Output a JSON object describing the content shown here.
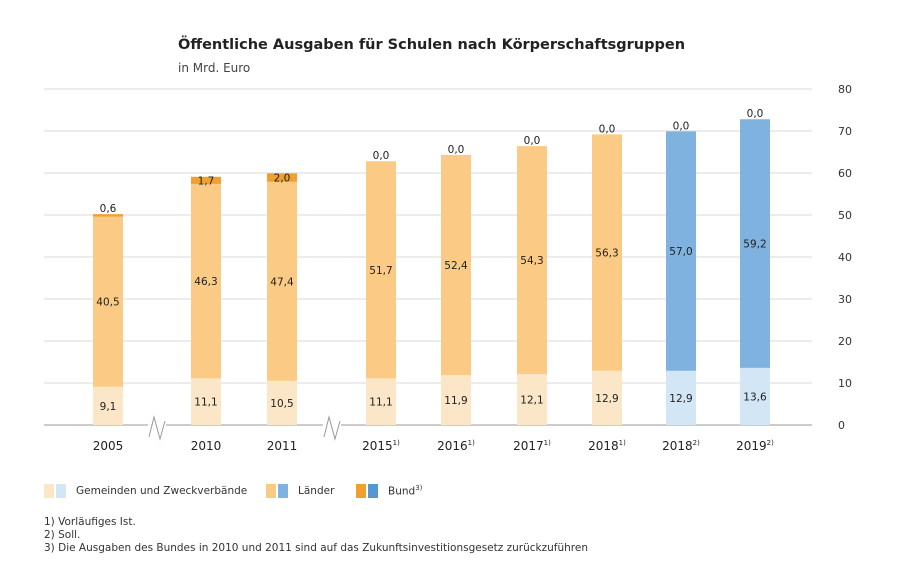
{
  "chart_data": {
    "type": "bar",
    "stacked": true,
    "title": "Öffentliche Ausgaben für Schulen nach Körperschaftsgruppen",
    "subtitle": "in Mrd. Euro",
    "categories": [
      "2005",
      "2010",
      "2011",
      "2015",
      "2016",
      "2017",
      "2018",
      "2018",
      "2019"
    ],
    "category_notes": [
      "",
      "",
      "",
      "1)",
      "1)",
      "1)",
      "1)",
      "2)",
      "2)"
    ],
    "palette": [
      "orange",
      "orange",
      "orange",
      "orange",
      "orange",
      "orange",
      "orange",
      "blue",
      "blue"
    ],
    "series": [
      {
        "name": "Gemeinden und Zweckverbände",
        "values": [
          9.1,
          11.1,
          10.5,
          11.1,
          11.9,
          12.1,
          12.9,
          12.9,
          13.6
        ],
        "labels": [
          "9,1",
          "11,1",
          "10,5",
          "11,1",
          "11,9",
          "12,1",
          "12,9",
          "12,9",
          "13,6"
        ]
      },
      {
        "name": "Länder",
        "values": [
          40.5,
          46.3,
          47.4,
          51.7,
          52.4,
          54.3,
          56.3,
          57.0,
          59.2
        ],
        "labels": [
          "40,5",
          "46,3",
          "47,4",
          "51,7",
          "52,4",
          "54,3",
          "56,3",
          "57,0",
          "59,2"
        ]
      },
      {
        "name": "Bund",
        "name_note": "3)",
        "values": [
          0.6,
          1.7,
          2.0,
          0.0,
          0.0,
          0.0,
          0.0,
          0.0,
          0.0
        ],
        "labels": [
          "0,6",
          "1,7",
          "2,0",
          "0,0",
          "0,0",
          "0,0",
          "0,0",
          "0,0",
          "0,0"
        ]
      }
    ],
    "y_ticks": [
      0,
      10,
      20,
      30,
      40,
      50,
      60,
      70,
      80
    ],
    "ylim": [
      0,
      80
    ],
    "axis_breaks": [
      "between 2005 and 2010",
      "between 2011 and 2015"
    ],
    "y_axis_position": "right",
    "grid": true,
    "legend_position": "bottom-left",
    "colors": {
      "orange": [
        "#fbe6c8",
        "#fbcb85",
        "#f0a030"
      ],
      "blue": [
        "#d3e6f5",
        "#7fb2de",
        "#5598cf"
      ],
      "grid": "#d9d9d9",
      "axis": "#999999"
    }
  },
  "footnotes": [
    "1) Vorläufiges Ist.",
    "2) Soll.",
    "3) Die Ausgaben des Bundes in 2010 und 2011 sind auf das Zukunftsinvestitionsgesetz zurückzuführen"
  ]
}
